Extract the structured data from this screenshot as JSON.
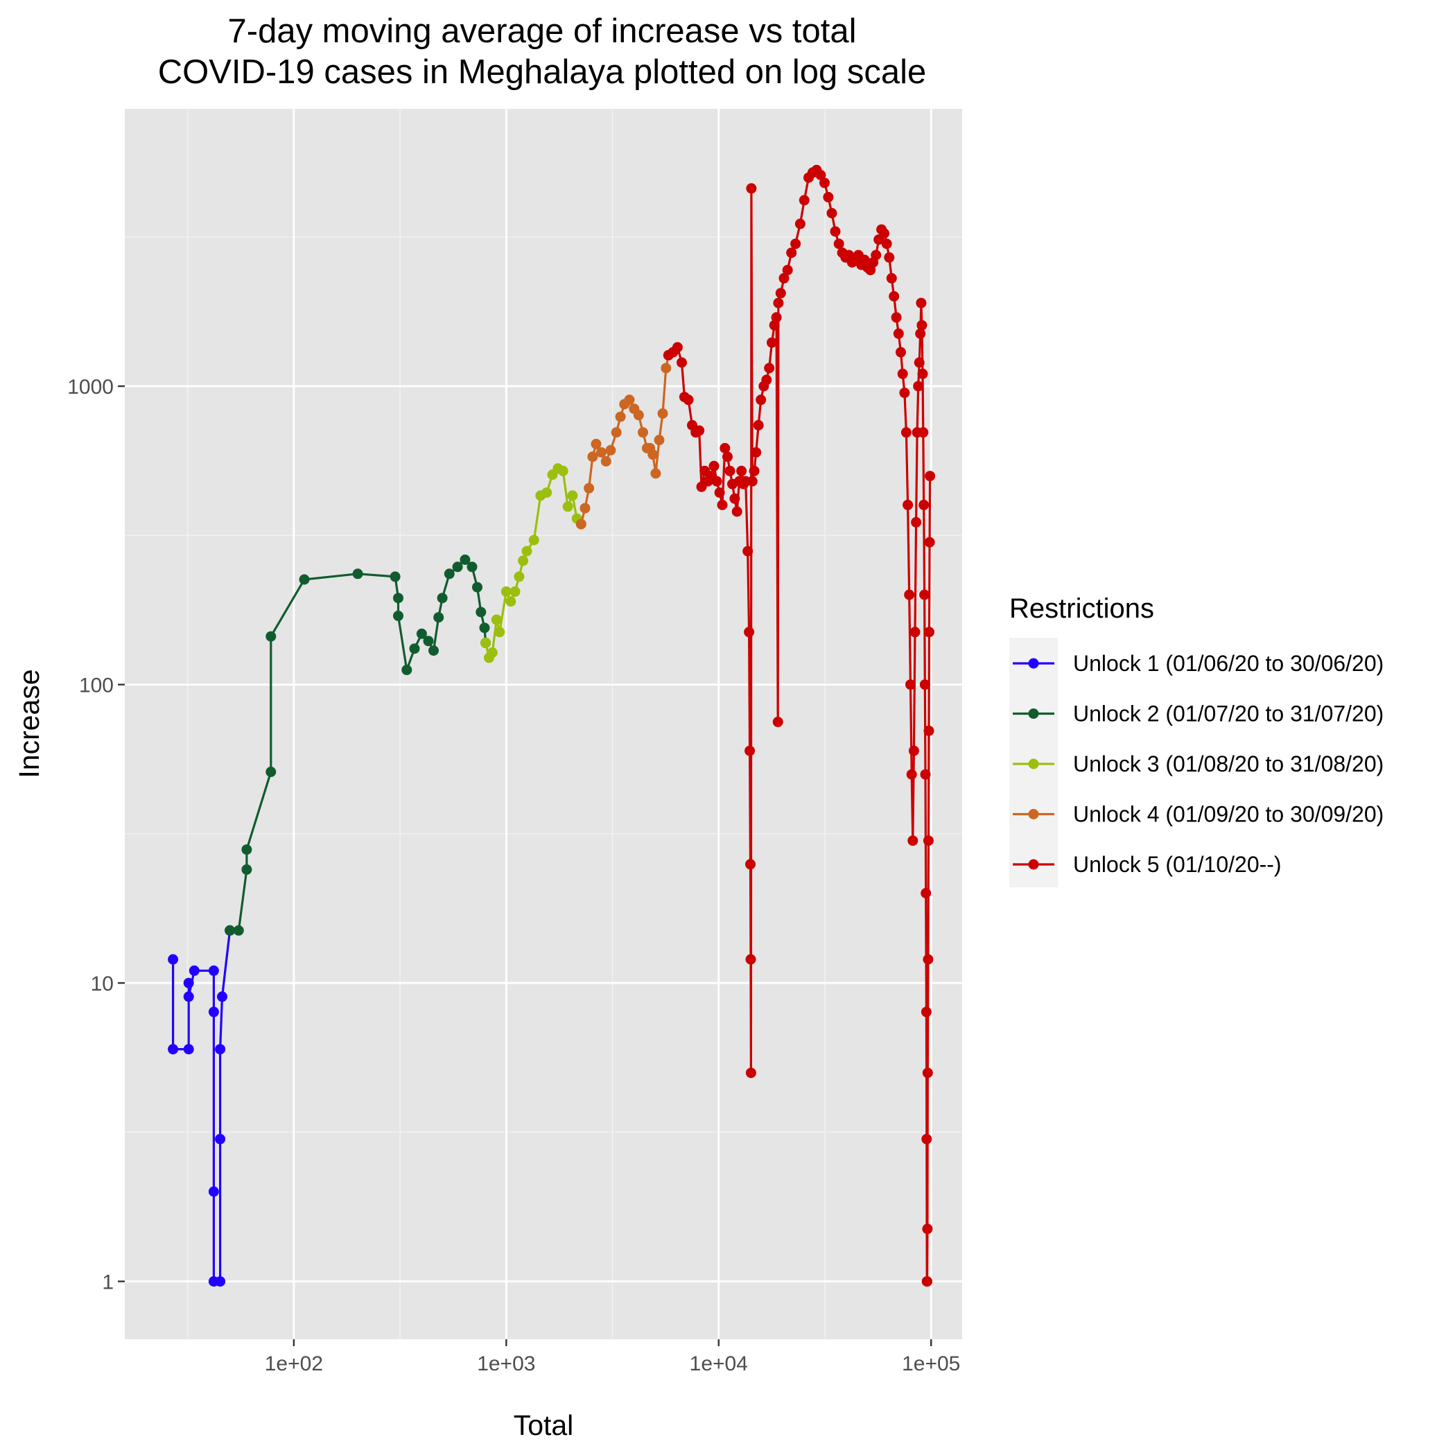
{
  "chart_data": {
    "type": "line",
    "title": "7-day moving average of increase vs total\nCOVID-19 cases in Meghalaya plotted on log scale",
    "title_lines": [
      "7-day moving average of increase vs total",
      "COVID-19 cases in Meghalaya plotted on log scale"
    ],
    "xlabel": "Total",
    "ylabel": "Increase",
    "x_scale": "log10",
    "y_scale": "log10",
    "xlim": [
      16,
      140000
    ],
    "ylim": [
      0.64,
      8500
    ],
    "x_ticks": [
      100,
      1000,
      10000,
      100000
    ],
    "x_tick_labels": [
      "1e+02",
      "1e+03",
      "1e+04",
      "1e+05"
    ],
    "y_ticks": [
      1,
      10,
      100,
      1000
    ],
    "y_tick_labels": [
      "1",
      "10",
      "100",
      "1000"
    ],
    "grid": true,
    "legend": {
      "title": "Restrictions",
      "position": "right"
    },
    "series": [
      {
        "name": "Unlock 1 (01/06/20 to 30/06/20)",
        "color": "#2200ff",
        "points": [
          [
            27,
            12
          ],
          [
            27,
            6
          ],
          [
            32,
            6
          ],
          [
            32,
            10
          ],
          [
            32,
            9
          ],
          [
            34,
            11
          ],
          [
            42,
            11
          ],
          [
            42,
            8
          ],
          [
            42,
            2
          ],
          [
            42,
            1
          ],
          [
            45,
            1
          ],
          [
            45,
            3
          ],
          [
            45,
            6
          ],
          [
            46,
            9
          ],
          [
            50,
            15
          ]
        ]
      },
      {
        "name": "Unlock 2 (01/07/20 to 31/07/20)",
        "color": "#115c2e",
        "points": [
          [
            50,
            15
          ],
          [
            55,
            15
          ],
          [
            60,
            24
          ],
          [
            60,
            28
          ],
          [
            78,
            51
          ],
          [
            78,
            145
          ],
          [
            112,
            225
          ],
          [
            200,
            235
          ],
          [
            300,
            230
          ],
          [
            310,
            195
          ],
          [
            310,
            170
          ],
          [
            340,
            112
          ],
          [
            370,
            132
          ],
          [
            400,
            148
          ],
          [
            430,
            140
          ],
          [
            455,
            130
          ],
          [
            480,
            168
          ],
          [
            500,
            195
          ],
          [
            540,
            235
          ],
          [
            590,
            248
          ],
          [
            640,
            262
          ],
          [
            690,
            248
          ],
          [
            730,
            212
          ],
          [
            760,
            175
          ],
          [
            790,
            155
          ],
          [
            800,
            138
          ]
        ]
      },
      {
        "name": "Unlock 3 (01/08/20 to 31/08/20)",
        "color": "#9bbf0d",
        "points": [
          [
            800,
            138
          ],
          [
            830,
            123
          ],
          [
            860,
            128
          ],
          [
            900,
            165
          ],
          [
            930,
            150
          ],
          [
            1000,
            205
          ],
          [
            1050,
            190
          ],
          [
            1100,
            205
          ],
          [
            1150,
            230
          ],
          [
            1200,
            260
          ],
          [
            1250,
            280
          ],
          [
            1350,
            305
          ],
          [
            1450,
            430
          ],
          [
            1550,
            440
          ],
          [
            1650,
            505
          ],
          [
            1750,
            530
          ],
          [
            1850,
            520
          ],
          [
            1950,
            395
          ],
          [
            2050,
            430
          ],
          [
            2150,
            360
          ],
          [
            2250,
            345
          ]
        ]
      },
      {
        "name": "Unlock 4 (01/09/20 to 30/09/20)",
        "color": "#cc6622",
        "points": [
          [
            2250,
            345
          ],
          [
            2350,
            390
          ],
          [
            2450,
            455
          ],
          [
            2550,
            580
          ],
          [
            2650,
            640
          ],
          [
            2800,
            600
          ],
          [
            2950,
            560
          ],
          [
            3100,
            610
          ],
          [
            3300,
            700
          ],
          [
            3450,
            790
          ],
          [
            3600,
            870
          ],
          [
            3800,
            900
          ],
          [
            4000,
            840
          ],
          [
            4200,
            800
          ],
          [
            4400,
            700
          ],
          [
            4600,
            620
          ],
          [
            4750,
            620
          ],
          [
            4900,
            590
          ],
          [
            5050,
            510
          ],
          [
            5250,
            660
          ],
          [
            5450,
            810
          ],
          [
            5650,
            1150
          ],
          [
            5800,
            1270
          ]
        ]
      },
      {
        "name": "Unlock 5 (01/10/20--)",
        "color": "#cc0000",
        "points": [
          [
            5800,
            1270
          ],
          [
            6100,
            1300
          ],
          [
            6400,
            1350
          ],
          [
            6700,
            1200
          ],
          [
            6900,
            920
          ],
          [
            7200,
            900
          ],
          [
            7500,
            740
          ],
          [
            7800,
            700
          ],
          [
            8100,
            710
          ],
          [
            8300,
            460
          ],
          [
            8600,
            520
          ],
          [
            8900,
            480
          ],
          [
            9200,
            500
          ],
          [
            9500,
            540
          ],
          [
            9800,
            480
          ],
          [
            10100,
            440
          ],
          [
            10400,
            400
          ],
          [
            10700,
            620
          ],
          [
            11000,
            580
          ],
          [
            11300,
            520
          ],
          [
            11600,
            470
          ],
          [
            11900,
            420
          ],
          [
            12200,
            380
          ],
          [
            12500,
            480
          ],
          [
            12800,
            520
          ],
          [
            13100,
            470
          ],
          [
            13400,
            480
          ],
          [
            13700,
            280
          ],
          [
            13900,
            150
          ],
          [
            14000,
            60
          ],
          [
            14100,
            25
          ],
          [
            14150,
            12
          ],
          [
            14200,
            5
          ],
          [
            14250,
            4600
          ],
          [
            14400,
            480
          ],
          [
            14700,
            520
          ],
          [
            15000,
            600
          ],
          [
            15400,
            740
          ],
          [
            15800,
            900
          ],
          [
            16300,
            1000
          ],
          [
            16800,
            1050
          ],
          [
            17300,
            1150
          ],
          [
            17800,
            1400
          ],
          [
            18300,
            1600
          ],
          [
            18700,
            1700
          ],
          [
            19000,
            75
          ],
          [
            19100,
            1900
          ],
          [
            19600,
            2050
          ],
          [
            20300,
            2300
          ],
          [
            21100,
            2450
          ],
          [
            22000,
            2800
          ],
          [
            23000,
            3000
          ],
          [
            24200,
            3500
          ],
          [
            25300,
            4200
          ],
          [
            26500,
            5000
          ],
          [
            27700,
            5200
          ],
          [
            28900,
            5300
          ],
          [
            30200,
            5100
          ],
          [
            31500,
            4800
          ],
          [
            32800,
            4300
          ],
          [
            34100,
            3800
          ],
          [
            35400,
            3300
          ],
          [
            36800,
            3000
          ],
          [
            38200,
            2800
          ],
          [
            39600,
            2700
          ],
          [
            41000,
            2750
          ],
          [
            42500,
            2600
          ],
          [
            44000,
            2650
          ],
          [
            45500,
            2750
          ],
          [
            47000,
            2550
          ],
          [
            48600,
            2650
          ],
          [
            50200,
            2500
          ],
          [
            51800,
            2450
          ],
          [
            53400,
            2600
          ],
          [
            55000,
            2750
          ],
          [
            56700,
            3100
          ],
          [
            58400,
            3350
          ],
          [
            60100,
            3250
          ],
          [
            61800,
            3000
          ],
          [
            63500,
            2700
          ],
          [
            65200,
            2300
          ],
          [
            66900,
            2000
          ],
          [
            68600,
            1700
          ],
          [
            70300,
            1500
          ],
          [
            72000,
            1300
          ],
          [
            73500,
            1100
          ],
          [
            75000,
            950
          ],
          [
            76400,
            700
          ],
          [
            77700,
            400
          ],
          [
            78900,
            200
          ],
          [
            80000,
            100
          ],
          [
            81000,
            50
          ],
          [
            82000,
            30
          ],
          [
            83000,
            60
          ],
          [
            84000,
            150
          ],
          [
            85000,
            350
          ],
          [
            86000,
            700
          ],
          [
            87000,
            1000
          ],
          [
            88000,
            1200
          ],
          [
            89000,
            1500
          ],
          [
            89800,
            1900
          ],
          [
            90500,
            1600
          ],
          [
            91200,
            1100
          ],
          [
            91800,
            700
          ],
          [
            92400,
            400
          ],
          [
            93000,
            200
          ],
          [
            93500,
            100
          ],
          [
            94000,
            50
          ],
          [
            94500,
            20
          ],
          [
            95000,
            8
          ],
          [
            95300,
            3
          ],
          [
            95600,
            1
          ],
          [
            95800,
            1
          ],
          [
            96100,
            1.5
          ],
          [
            96400,
            5
          ],
          [
            96800,
            12
          ],
          [
            97200,
            30
          ],
          [
            97600,
            70
          ],
          [
            98000,
            150
          ],
          [
            98400,
            300
          ],
          [
            98800,
            500
          ]
        ]
      }
    ]
  }
}
